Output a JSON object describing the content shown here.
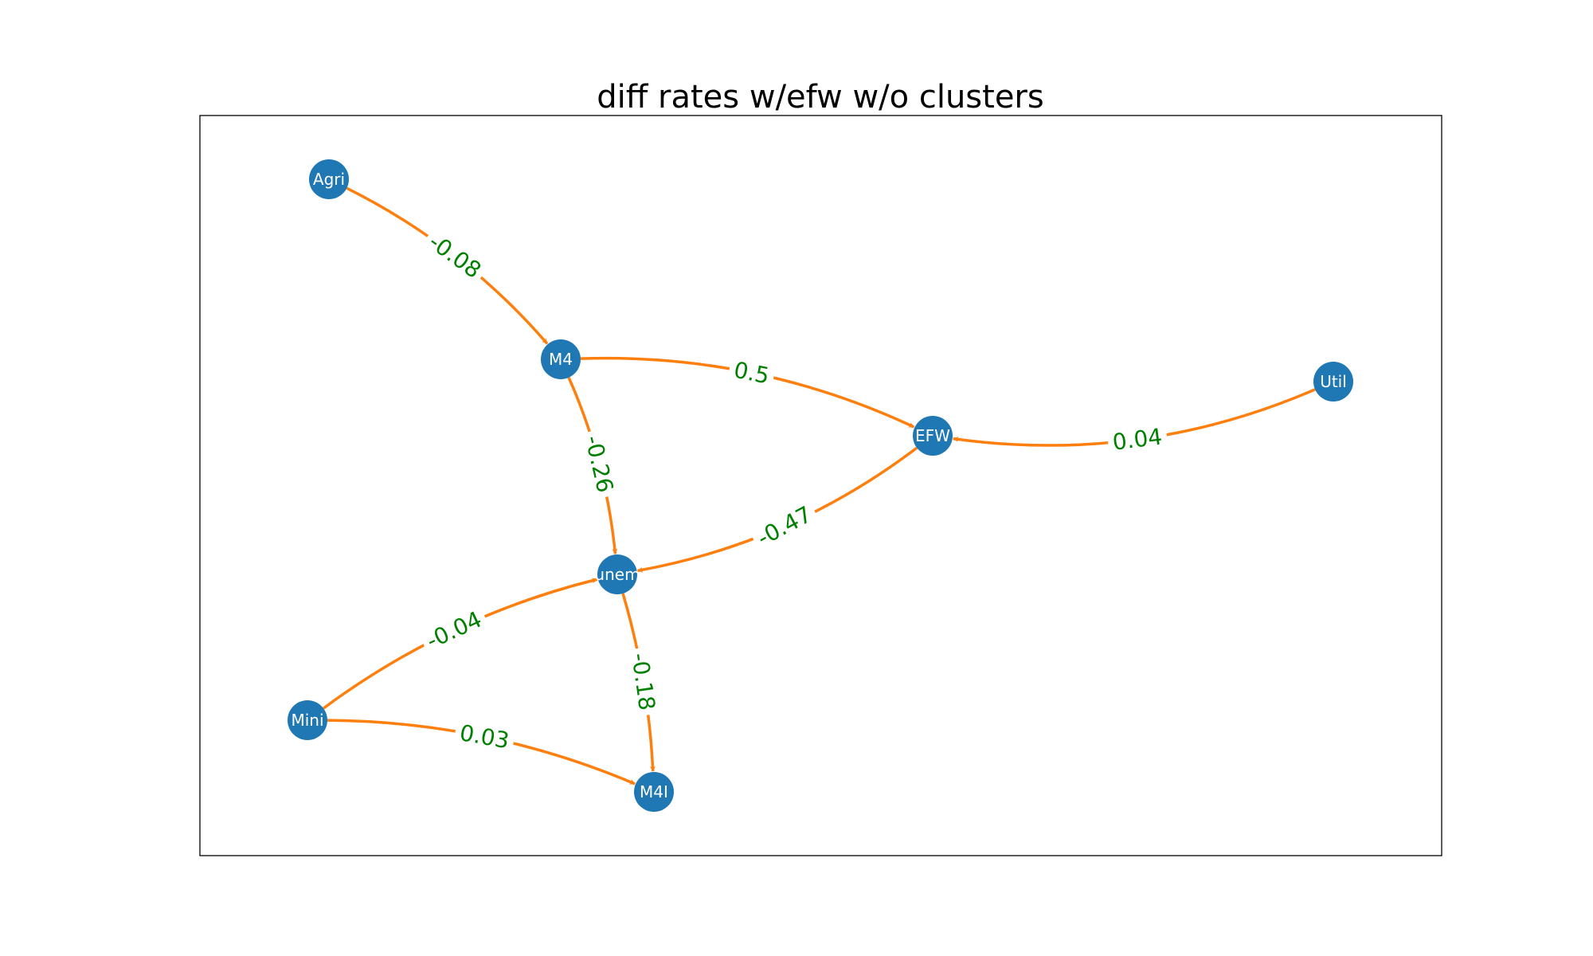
{
  "title": "diff rates w/efw w/o clusters",
  "colors": {
    "node": "#1f77b4",
    "edge": "#ff7f0e",
    "edge_label": "#008000",
    "node_label": "#ffffff"
  },
  "nodes": [
    {
      "id": "Agri",
      "label": "Agri"
    },
    {
      "id": "M4",
      "label": "M4"
    },
    {
      "id": "EFW",
      "label": "EFW"
    },
    {
      "id": "Util",
      "label": "Util"
    },
    {
      "id": "unem",
      "label": "unem"
    },
    {
      "id": "Mini",
      "label": "Mini"
    },
    {
      "id": "M4I",
      "label": "M4I"
    }
  ],
  "edges": [
    {
      "id": "agri-m4",
      "source": "Agri",
      "target": "M4",
      "label": "-0.08"
    },
    {
      "id": "m4-efw",
      "source": "M4",
      "target": "EFW",
      "label": "0.5"
    },
    {
      "id": "util-efw",
      "source": "Util",
      "target": "EFW",
      "label": "0.04"
    },
    {
      "id": "m4-unem",
      "source": "M4",
      "target": "unem",
      "label": "-0.26"
    },
    {
      "id": "efw-unem",
      "source": "EFW",
      "target": "unem",
      "label": "-0.47"
    },
    {
      "id": "mini-unem",
      "source": "Mini",
      "target": "unem",
      "label": "-0.04"
    },
    {
      "id": "unem-m4i",
      "source": "unem",
      "target": "M4I",
      "label": "-0.18"
    },
    {
      "id": "mini-m4i",
      "source": "Mini",
      "target": "M4I",
      "label": "0.03"
    }
  ]
}
